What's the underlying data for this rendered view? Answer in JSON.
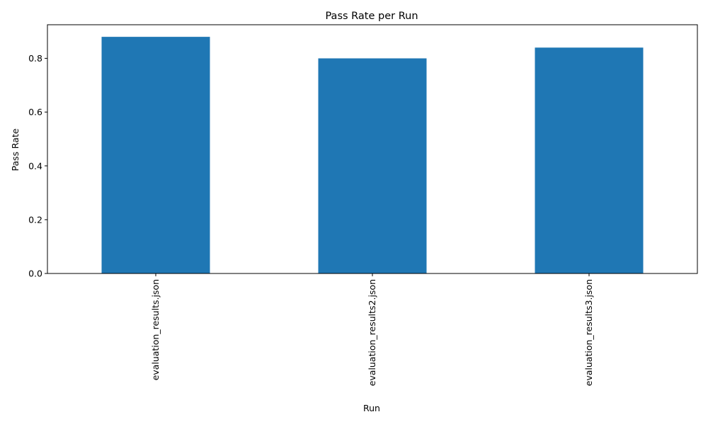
{
  "chart_data": {
    "type": "bar",
    "title": "Pass Rate per Run",
    "xlabel": "Run",
    "ylabel": "Pass Rate",
    "categories": [
      "evaluation_results.json",
      "evaluation_results2.json",
      "evaluation_results3.json"
    ],
    "values": [
      0.88,
      0.8,
      0.84
    ],
    "ylim": [
      0,
      0.925
    ],
    "yticks": [
      0.0,
      0.2,
      0.4,
      0.6,
      0.8
    ],
    "ytick_labels": [
      "0.0",
      "0.2",
      "0.4",
      "0.6",
      "0.8"
    ],
    "grid": false,
    "legend": "none",
    "bar_color": "#1f77b4",
    "axis_color": "#000000"
  }
}
